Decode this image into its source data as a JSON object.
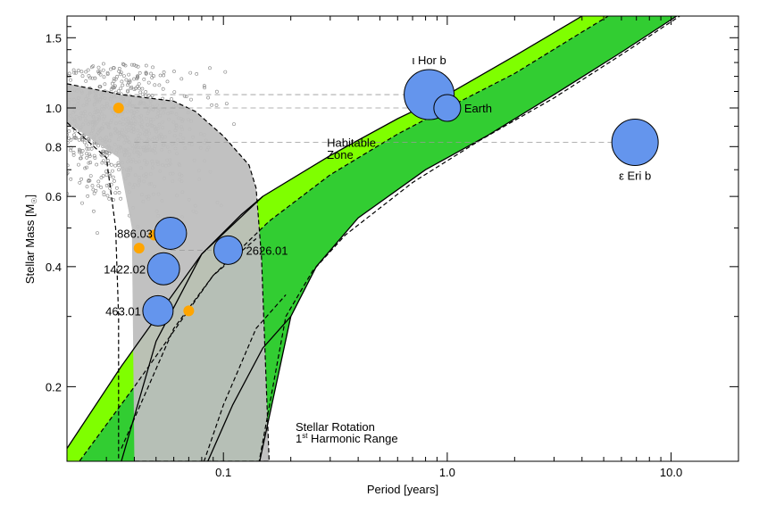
{
  "chart_data": {
    "type": "scatter",
    "xlabel": "Period [years]",
    "ylabel": "Stellar Mass [M",
    "ylabel_sub": "☉",
    "ylabel_close": "]",
    "x_scale": "log",
    "y_scale": "log",
    "xlim": [
      0.02,
      20
    ],
    "ylim": [
      0.13,
      1.7
    ],
    "x_ticks": [
      {
        "value": 0.1,
        "label": "0.1"
      },
      {
        "value": 1.0,
        "label": "1.0"
      },
      {
        "value": 10.0,
        "label": "10.0"
      }
    ],
    "y_ticks": [
      {
        "value": 0.2,
        "label": "0.2"
      },
      {
        "value": 0.4,
        "label": "0.4"
      },
      {
        "value": 0.6,
        "label": "0.6"
      },
      {
        "value": 0.8,
        "label": "0.8"
      },
      {
        "value": 1.0,
        "label": "1.0"
      },
      {
        "value": 1.5,
        "label": "1.5"
      }
    ],
    "grid": false,
    "colors": {
      "planet_fill": "#6495ED",
      "orange_point": "#FFA500",
      "hz_light": "#7FFF00",
      "hz_dark": "#32CD32",
      "rotation_band": "#BEBEBE",
      "background_stars": "#808080"
    },
    "planets": [
      {
        "label": "ι Hor b",
        "x": 0.83,
        "y": 1.08,
        "size": 1.0,
        "label_pos": "above"
      },
      {
        "label": "Earth",
        "x": 1.0,
        "y": 1.0,
        "size": 0.35,
        "label_pos": "right"
      },
      {
        "label": "ε Eri b",
        "x": 6.9,
        "y": 0.82,
        "size": 0.9,
        "label_pos": "below"
      },
      {
        "label": "2626.01",
        "x": 0.105,
        "y": 0.44,
        "size": 0.4,
        "label_pos": "right"
      },
      {
        "label": "886.03",
        "x": 0.058,
        "y": 0.485,
        "size": 0.5,
        "label_pos": "left"
      },
      {
        "label": "1422.02",
        "x": 0.054,
        "y": 0.395,
        "size": 0.5,
        "label_pos": "left"
      },
      {
        "label": "463.01",
        "x": 0.051,
        "y": 0.31,
        "size": 0.45,
        "label_pos": "left"
      }
    ],
    "orange_points": [
      {
        "x": 0.034,
        "y": 1.0
      },
      {
        "x": 0.049,
        "y": 0.48
      },
      {
        "x": 0.042,
        "y": 0.445
      },
      {
        "x": 0.049,
        "y": 0.395
      },
      {
        "x": 0.07,
        "y": 0.31
      }
    ],
    "reference_lines": [
      {
        "y": 1.08,
        "x_from": 0.04,
        "x_to": 0.83
      },
      {
        "y": 1.0,
        "x_from": 0.04,
        "x_to": 1.0
      },
      {
        "y": 0.82,
        "x_from": 0.04,
        "x_to": 6.9
      },
      {
        "y": 0.44,
        "x_from": 0.058,
        "x_to": 0.105
      }
    ],
    "annotations": [
      {
        "text": "Habitable",
        "x": 0.29,
        "y": 0.8
      },
      {
        "text": "Zone",
        "x": 0.29,
        "y": 0.745
      },
      {
        "text": "Stellar Rotation",
        "x": 0.21,
        "y": 0.155
      },
      {
        "text_main": "1",
        "text_sup": "st",
        "text_rest": " Harmonic Range",
        "x": 0.21,
        "y": 0.145
      }
    ],
    "hz_inner_edge": [
      [
        0.02,
        0.14
      ],
      [
        0.035,
        0.225
      ],
      [
        0.08,
        0.43
      ],
      [
        0.15,
        0.6
      ],
      [
        0.3,
        0.76
      ],
      [
        0.6,
        0.94
      ],
      [
        1.0,
        1.08
      ],
      [
        2.0,
        1.35
      ],
      [
        4.0,
        1.7
      ]
    ],
    "hz_mid_edge": [
      [
        0.02,
        0.118
      ],
      [
        0.04,
        0.2
      ],
      [
        0.09,
        0.38
      ],
      [
        0.16,
        0.52
      ],
      [
        0.3,
        0.68
      ],
      [
        0.6,
        0.86
      ],
      [
        1.0,
        1.0
      ],
      [
        2.0,
        1.22
      ],
      [
        4.0,
        1.55
      ],
      [
        6.0,
        1.78
      ]
    ],
    "hz_outer_edge": [
      [
        0.14,
        0.118
      ],
      [
        0.2,
        0.3
      ],
      [
        0.26,
        0.4
      ],
      [
        0.4,
        0.53
      ],
      [
        0.8,
        0.7
      ],
      [
        1.5,
        0.85
      ],
      [
        3.0,
        1.08
      ],
      [
        6.0,
        1.38
      ],
      [
        12.0,
        1.78
      ]
    ],
    "hz_outer_dash": [
      [
        0.14,
        0.118
      ],
      [
        0.19,
        0.3
      ],
      [
        0.25,
        0.39
      ],
      [
        0.35,
        0.48
      ],
      [
        0.7,
        0.65
      ],
      [
        1.4,
        0.83
      ],
      [
        3.0,
        1.06
      ],
      [
        6.0,
        1.36
      ],
      [
        12.0,
        1.76
      ]
    ],
    "tidal_solid_1": [
      [
        0.035,
        0.13
      ],
      [
        0.05,
        0.26
      ],
      [
        0.08,
        0.43
      ],
      [
        0.12,
        0.54
      ],
      [
        0.15,
        0.6
      ]
    ],
    "tidal_dash_1": [
      [
        0.035,
        0.14
      ],
      [
        0.06,
        0.28
      ],
      [
        0.09,
        0.38
      ],
      [
        0.14,
        0.47
      ]
    ],
    "tidal_dash_2": [
      [
        0.078,
        0.12
      ],
      [
        0.1,
        0.18
      ],
      [
        0.14,
        0.28
      ],
      [
        0.19,
        0.34
      ]
    ],
    "tidal_solid_2": [
      [
        0.08,
        0.12
      ],
      [
        0.11,
        0.18
      ],
      [
        0.15,
        0.25
      ],
      [
        0.2,
        0.3
      ]
    ],
    "left_dash_curve": [
      [
        0.02,
        0.92
      ],
      [
        0.03,
        0.75
      ],
      [
        0.033,
        0.5
      ],
      [
        0.034,
        0.3
      ],
      [
        0.034,
        0.13
      ]
    ],
    "rotation_band_polygon": [
      [
        0.02,
        1.15
      ],
      [
        0.035,
        1.08
      ],
      [
        0.06,
        1.04
      ],
      [
        0.075,
        0.98
      ],
      [
        0.1,
        0.85
      ],
      [
        0.13,
        0.72
      ],
      [
        0.14,
        0.63
      ],
      [
        0.148,
        0.42
      ],
      [
        0.16,
        0.13
      ],
      [
        0.04,
        0.13
      ],
      [
        0.039,
        0.5
      ],
      [
        0.034,
        0.75
      ],
      [
        0.02,
        0.92
      ]
    ],
    "background_star_cloud": {
      "x_center": 0.033,
      "y_center": 0.9,
      "count": 900
    }
  }
}
